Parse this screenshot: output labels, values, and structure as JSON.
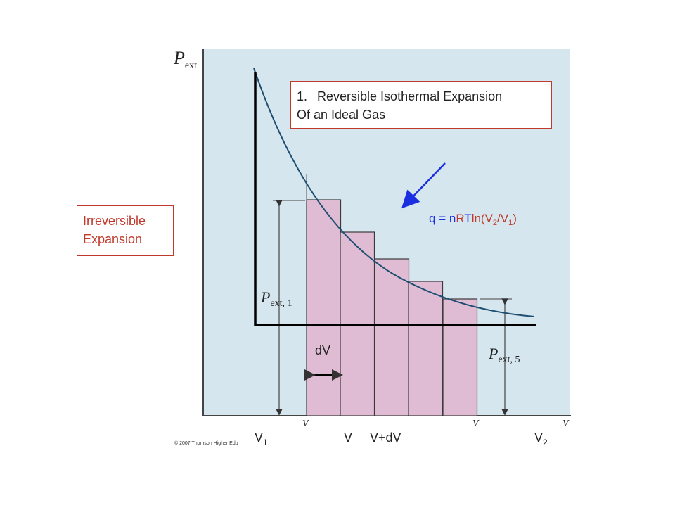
{
  "title_box": {
    "number": "1.",
    "line1": "Reversible Isothermal Expansion",
    "line2": "Of an Ideal Gas"
  },
  "irreversible_box": {
    "line1": "Irreversible",
    "line2": "Expansion"
  },
  "equation": {
    "q": "q",
    "eq": " = ",
    "n": "n",
    "R": "R",
    "T": "T",
    "ln": "ln(V",
    "sub2": "2",
    "slash": "/V",
    "sub1": "1",
    "close": ")"
  },
  "axis": {
    "y_label": "P",
    "y_label_sub": "ext",
    "x_label": "V"
  },
  "labels": {
    "pext1": "P",
    "pext1_sub": "ext, 1",
    "pext5": "P",
    "pext5_sub": "ext, 5",
    "dV": "dV",
    "V1": "V",
    "V1_sub": "1",
    "V": "V",
    "VdV": "V+dV",
    "V2": "V",
    "V2_sub": "2"
  },
  "copyright": "© 2007 Thomson Higher Edu",
  "colors": {
    "background_panel": "#d6e6ee",
    "curve": "#1e4f72",
    "bars": "#dfbcd3",
    "bar_stroke": "#3a3a3a",
    "arrow": "#1a2fe0",
    "box_border": "#c0392b",
    "red_text": "#c0392b",
    "blue_text": "#1a2fe0"
  }
}
